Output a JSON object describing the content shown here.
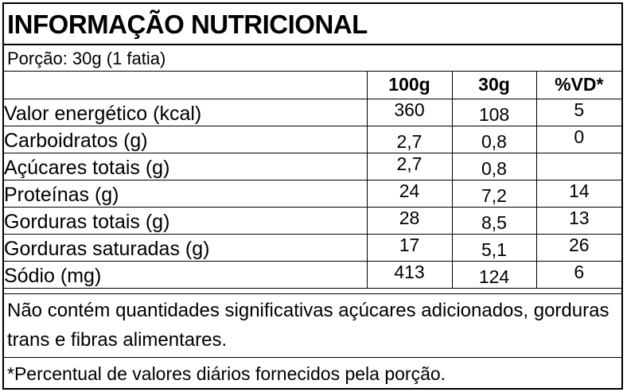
{
  "title": "INFORMAÇÃO NUTRICIONAL",
  "portion": "Porção: 30g (1 fatia)",
  "headers": [
    "",
    "100g",
    "30g",
    "%VD*"
  ],
  "rows": [
    {
      "nutrient": "Valor energético (kcal)",
      "per100g": "360",
      "per30g": "108",
      "vd": "5"
    },
    {
      "nutrient": "Carboidratos (g)",
      "per100g": "2,7",
      "per30g": "0,8",
      "vd": "0"
    },
    {
      "nutrient": "Açúcares totais (g)",
      "per100g": "2,7",
      "per30g": "0,8",
      "vd": ""
    },
    {
      "nutrient": "Proteínas (g)",
      "per100g": "24",
      "per30g": "7,2",
      "vd": "14"
    },
    {
      "nutrient": "Gorduras totais (g)",
      "per100g": "28",
      "per30g": "8,5",
      "vd": "13"
    },
    {
      "nutrient": "Gorduras saturadas (g)",
      "per100g": "17",
      "per30g": "5,1",
      "vd": "26"
    },
    {
      "nutrient": "Sódio (mg)",
      "per100g": "413",
      "per30g": "124",
      "vd": "6"
    }
  ],
  "footnote_main": "Não contém quantidades significativas açúcares adicionados, gorduras trans e fibras alimentares.",
  "footnote_vd": "*Percentual de valores diários fornecidos pela porção."
}
